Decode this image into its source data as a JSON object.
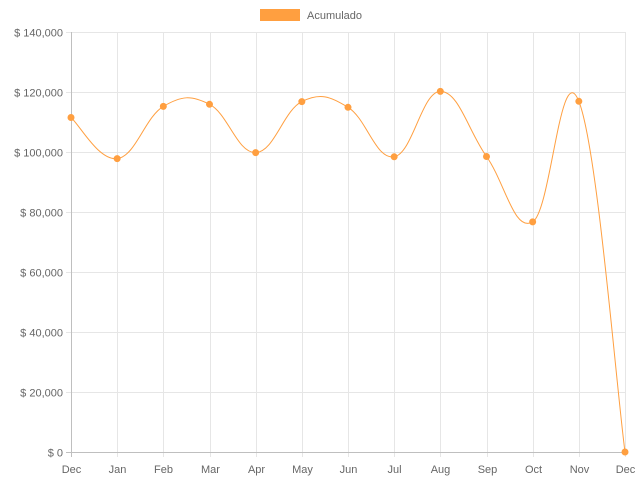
{
  "chart_data": {
    "type": "line",
    "categories": [
      "Dec",
      "Jan",
      "Feb",
      "Mar",
      "Apr",
      "May",
      "Jun",
      "Jul",
      "Aug",
      "Sep",
      "Oct",
      "Nov",
      "Dec"
    ],
    "series": [
      {
        "name": "Acumulado",
        "color": "#ff9f40",
        "values": [
          111500,
          97800,
          115200,
          115900,
          99800,
          116800,
          114900,
          98400,
          120200,
          98500,
          76700,
          116900,
          0
        ]
      }
    ],
    "ylim": [
      0,
      140000
    ],
    "yticks": [
      0,
      20000,
      40000,
      60000,
      80000,
      100000,
      120000,
      140000
    ],
    "ytick_labels": [
      "$ 0",
      "$ 20,000",
      "$ 40,000",
      "$ 60,000",
      "$ 80,000",
      "$ 100,000",
      "$ 120,000",
      "$ 140,000"
    ],
    "grid": true,
    "legend": "top-center",
    "curve": "smooth"
  }
}
